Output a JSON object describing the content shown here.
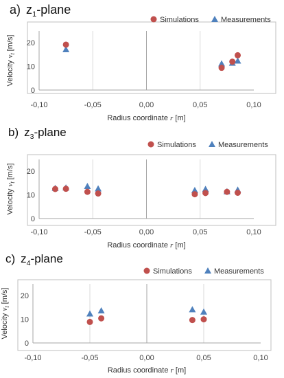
{
  "colors": {
    "simulations": "#c0504d",
    "measurements": "#4f81bd",
    "grid": "#d9d9d9",
    "frame": "#bfbfbf",
    "zero_line": "#bfbfbf"
  },
  "chart_data": [
    {
      "type": "scatter",
      "panel_letter": "a)",
      "plane_prefix": "z",
      "plane_sub": "1",
      "plane_suffix": "-plane",
      "xlabel_prefix": "Radius coordinate ",
      "xlabel_var": "r",
      "xlabel_unit": " [m]",
      "ylabel_prefix": "Velocity ",
      "ylabel_var": "v",
      "ylabel_sub": "t",
      "ylabel_unit": " [m/s]",
      "xlim": [
        -0.1,
        0.1
      ],
      "ylim": [
        0,
        25
      ],
      "x_tick_labels": [
        "-0,10",
        "-0,05",
        "0,00",
        "0,05",
        "0,10"
      ],
      "y_tick_labels": [
        "0",
        "10",
        "20"
      ],
      "legend_position": "top-right",
      "series": [
        {
          "name": "Simulations",
          "marker": "circle",
          "x": [
            -0.075,
            0.07,
            0.08,
            0.085
          ],
          "y": [
            19.2,
            9.4,
            12.0,
            14.7
          ]
        },
        {
          "name": "Measurements",
          "marker": "triangle",
          "x": [
            -0.075,
            0.07,
            0.08,
            0.085
          ],
          "y": [
            17.0,
            11.0,
            11.3,
            12.2
          ]
        }
      ]
    },
    {
      "type": "scatter",
      "panel_letter": "b)",
      "plane_prefix": "z",
      "plane_sub": "3",
      "plane_suffix": "-plane",
      "xlabel_prefix": "Radius coordinate ",
      "xlabel_var": "r",
      "xlabel_unit": " [m]",
      "ylabel_prefix": "Velocity ",
      "ylabel_var": "v",
      "ylabel_sub": "t",
      "ylabel_unit": " [m/s]",
      "xlim": [
        -0.1,
        0.1
      ],
      "ylim": [
        0,
        25
      ],
      "x_tick_labels": [
        "-0,10",
        "-0,05",
        "0,00",
        "0,05",
        "0,10"
      ],
      "y_tick_labels": [
        "0",
        "10",
        "20"
      ],
      "legend_position": "top-right",
      "series": [
        {
          "name": "Simulations",
          "marker": "circle",
          "x": [
            -0.085,
            -0.075,
            -0.055,
            -0.045,
            0.045,
            0.055,
            0.075,
            0.085
          ],
          "y": [
            12.5,
            12.6,
            11.3,
            10.6,
            10.3,
            10.8,
            11.3,
            10.9
          ]
        },
        {
          "name": "Measurements",
          "marker": "triangle",
          "x": [
            -0.085,
            -0.075,
            -0.055,
            -0.045,
            0.045,
            0.055,
            0.075,
            0.085
          ],
          "y": [
            12.7,
            12.9,
            13.5,
            12.5,
            11.8,
            12.3,
            11.3,
            12.0
          ]
        }
      ]
    },
    {
      "type": "scatter",
      "panel_letter": "c)",
      "plane_prefix": "z",
      "plane_sub": "4",
      "plane_suffix": "-plane",
      "xlabel_prefix": "Radius coordinate ",
      "xlabel_var": "r",
      "xlabel_unit": " [m]",
      "ylabel_prefix": "Velocity ",
      "ylabel_var": "v",
      "ylabel_sub": "t",
      "ylabel_unit": " [m/s]",
      "xlim": [
        -0.1,
        0.1
      ],
      "ylim": [
        0,
        25
      ],
      "x_tick_labels": [
        "-0,10",
        "-0,05",
        "0,00",
        "0,05",
        "0,10"
      ],
      "y_tick_labels": [
        "0",
        "10",
        "20"
      ],
      "legend_position": "top-right",
      "series": [
        {
          "name": "Simulations",
          "marker": "circle",
          "x": [
            -0.05,
            -0.04,
            0.04,
            0.05
          ],
          "y": [
            8.9,
            10.4,
            9.7,
            10.0
          ]
        },
        {
          "name": "Measurements",
          "marker": "triangle",
          "x": [
            -0.05,
            -0.04,
            0.04,
            0.05
          ],
          "y": [
            12.2,
            13.5,
            14.0,
            13.0
          ]
        }
      ]
    }
  ]
}
